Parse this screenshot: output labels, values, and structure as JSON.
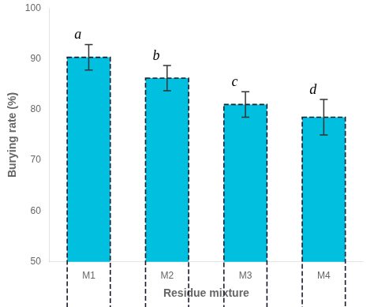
{
  "chart_data": {
    "type": "bar",
    "categories": [
      "M1",
      "M2",
      "M3",
      "M4"
    ],
    "values": [
      90.3,
      86.2,
      81.0,
      78.5
    ],
    "errors": [
      2.5,
      2.5,
      2.5,
      3.5
    ],
    "annotations": [
      "a",
      "b",
      "c",
      "d"
    ],
    "color": "#00BFDF",
    "xlabel": "Residue mixture",
    "ylabel": "Burying rate (%)",
    "ylim": [
      50,
      100
    ],
    "yticks": [
      50,
      60,
      70,
      80,
      90,
      100
    ],
    "grid": false
  }
}
